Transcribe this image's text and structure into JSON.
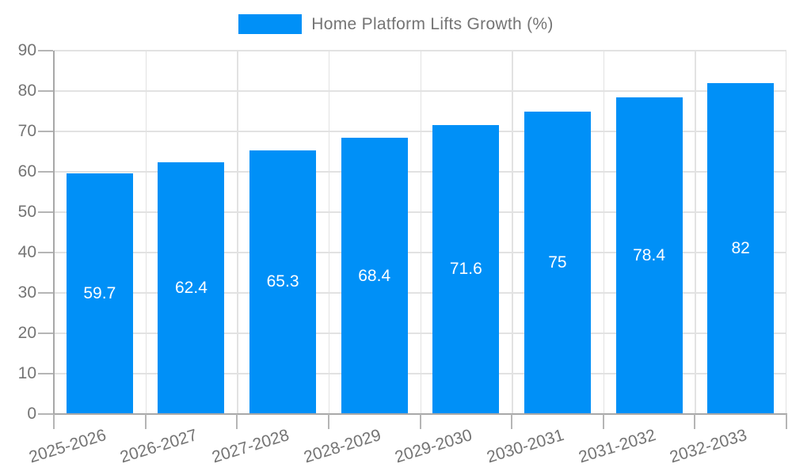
{
  "legend": {
    "label": "Home Platform Lifts Growth (%)"
  },
  "chart_data": {
    "type": "bar",
    "title": "Home Platform Lifts Growth (%)",
    "categories": [
      "2025-2026",
      "2026-2027",
      "2027-2028",
      "2028-2029",
      "2029-2030",
      "2030-2031",
      "2031-2032",
      "2032-2033"
    ],
    "values": [
      59.7,
      62.4,
      65.3,
      68.4,
      71.6,
      75,
      78.4,
      82
    ],
    "xlabel": "",
    "ylabel": "",
    "ylim": [
      0,
      90
    ],
    "ytick_step": 10,
    "grid": true,
    "legend_position": "top-center",
    "bar_labels_inside": true,
    "colors": {
      "bar": "#0090f7",
      "bar_value_text": "#ffffff",
      "axis_text": "#747474",
      "grid_line": "#e2e2e2",
      "axis_line": "#a8a8a8",
      "tick_line": "#b5b5b5"
    }
  }
}
